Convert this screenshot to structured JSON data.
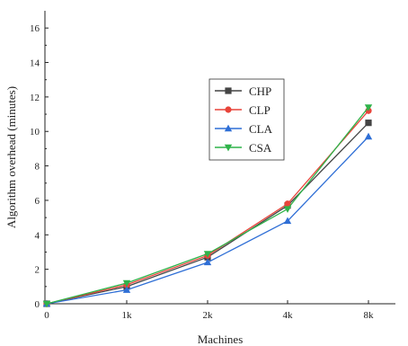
{
  "chart_data": {
    "type": "line",
    "title": "",
    "xlabel": "Machines",
    "ylabel": "Algorithm overhead (minutes)",
    "categories": [
      "0",
      "1k",
      "2k",
      "4k",
      "8k"
    ],
    "ylim": [
      0,
      17
    ],
    "yticks": [
      0,
      2,
      4,
      6,
      8,
      10,
      12,
      14,
      16
    ],
    "grid": false,
    "legend_position": "center",
    "series": [
      {
        "name": "CHP",
        "color": "#444444",
        "marker": "square",
        "values": [
          0,
          1.0,
          2.7,
          5.7,
          10.5
        ]
      },
      {
        "name": "CLP",
        "color": "#e8443a",
        "marker": "circle",
        "values": [
          0,
          1.1,
          2.8,
          5.8,
          11.2
        ]
      },
      {
        "name": "CLA",
        "color": "#2f6fd6",
        "marker": "triangle-up",
        "values": [
          0,
          0.8,
          2.4,
          4.8,
          9.7
        ]
      },
      {
        "name": "CSA",
        "color": "#2fb34a",
        "marker": "triangle-down",
        "values": [
          0,
          1.2,
          2.9,
          5.5,
          11.4
        ]
      }
    ]
  }
}
